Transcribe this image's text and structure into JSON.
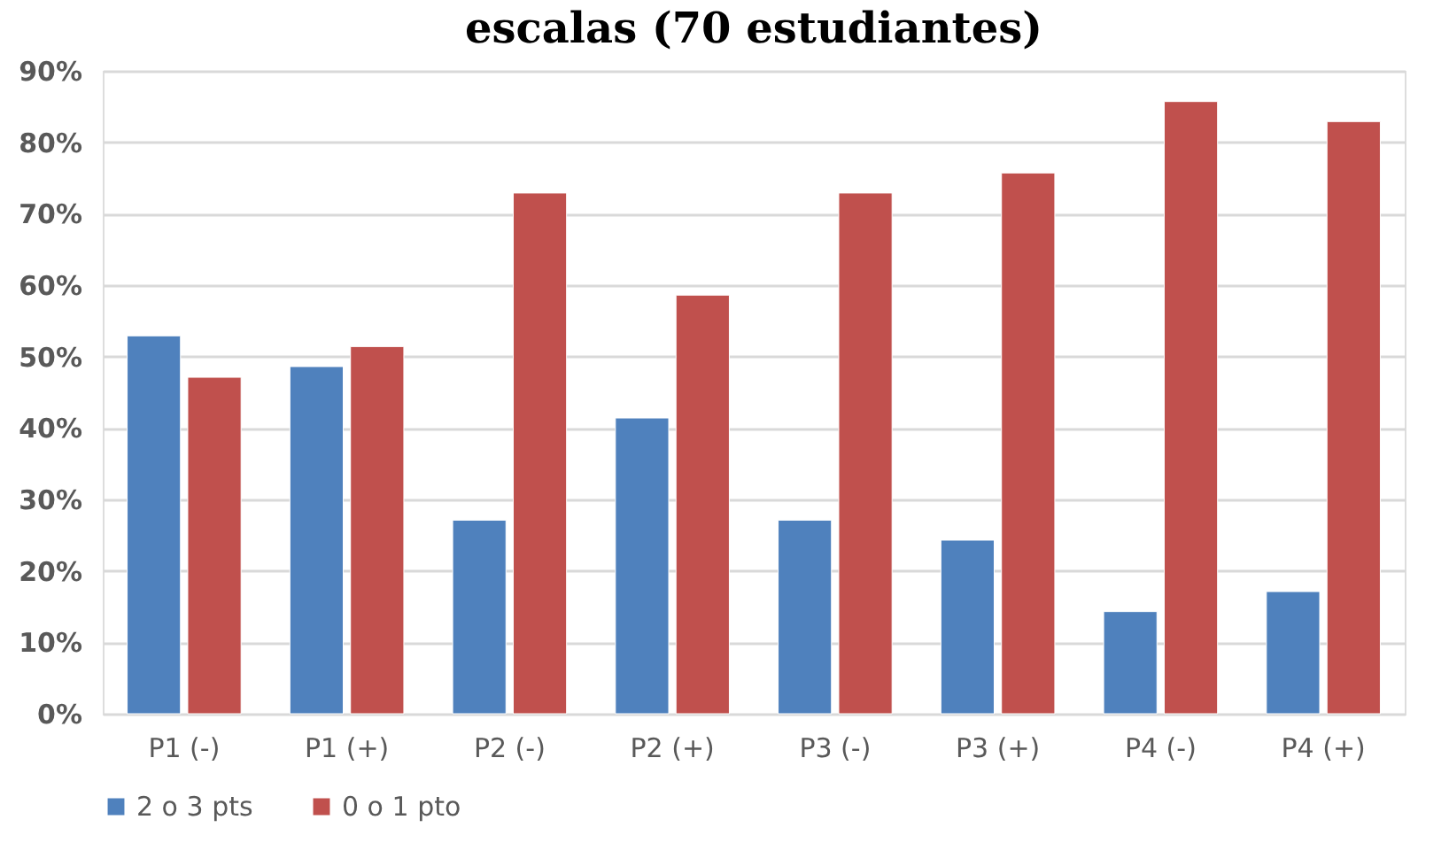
{
  "chart_data": {
    "type": "bar",
    "title": "escalas (70 estudiantes)",
    "categories": [
      "P1 (-)",
      "P1 (+)",
      "P2 (-)",
      "P2 (+)",
      "P3 (-)",
      "P3 (+)",
      "P4 (-)",
      "P4 (+)"
    ],
    "series": [
      {
        "name": "2 o 3 pts",
        "color": "#4f81bd",
        "values": [
          52.9,
          48.6,
          27.1,
          41.4,
          27.1,
          24.3,
          14.3,
          17.1
        ]
      },
      {
        "name": "0 o 1 pto",
        "color": "#c0504d",
        "values": [
          47.1,
          51.4,
          72.9,
          58.6,
          72.9,
          75.7,
          85.7,
          82.9
        ]
      }
    ],
    "ylim": [
      0,
      90
    ],
    "yticks": [
      {
        "value": 0,
        "label": "0%"
      },
      {
        "value": 10,
        "label": "10%"
      },
      {
        "value": 20,
        "label": "20%"
      },
      {
        "value": 30,
        "label": "30%"
      },
      {
        "value": 40,
        "label": "40%"
      },
      {
        "value": 50,
        "label": "50%"
      },
      {
        "value": 60,
        "label": "60%"
      },
      {
        "value": 70,
        "label": "70%"
      },
      {
        "value": 80,
        "label": "80%"
      },
      {
        "value": 90,
        "label": "90%"
      }
    ],
    "grid": "y",
    "legend": "bottom"
  }
}
